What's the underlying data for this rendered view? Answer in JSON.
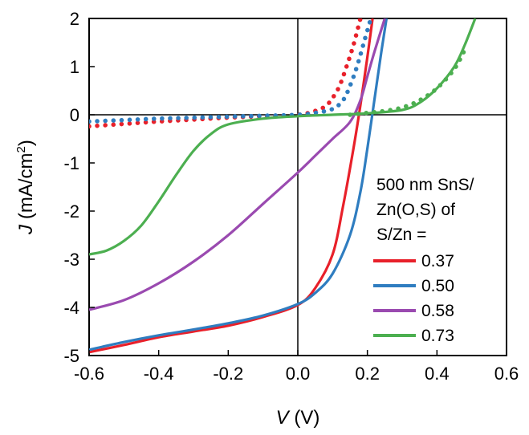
{
  "chart_data": {
    "type": "line",
    "xlabel_italic": "V",
    "xlabel_unit": " (V)",
    "ylabel_italic": "J",
    "ylabel_unit_pre": " (mA/cm",
    "ylabel_unit_sup": "2",
    "ylabel_unit_post": ")",
    "xlim": [
      -0.6,
      0.6
    ],
    "ylim": [
      -5,
      2
    ],
    "xticks": [
      "-0.6",
      "-0.4",
      "-0.2",
      "0.0",
      "0.2",
      "0.4",
      "0.6"
    ],
    "yticks": [
      "-5",
      "-4",
      "-3",
      "-2",
      "-1",
      "0",
      "1",
      "2"
    ],
    "legend_title": [
      "500 nm SnS/",
      "Zn(O,S) of",
      "S/Zn ="
    ],
    "legend_position": "bottom-right",
    "series": [
      {
        "name": "0.37",
        "color": "#e8202a",
        "illuminated": [
          [
            -0.6,
            -4.93
          ],
          [
            -0.5,
            -4.78
          ],
          [
            -0.4,
            -4.62
          ],
          [
            -0.3,
            -4.5
          ],
          [
            -0.2,
            -4.38
          ],
          [
            -0.1,
            -4.2
          ],
          [
            0.0,
            -3.95
          ],
          [
            0.05,
            -3.6
          ],
          [
            0.1,
            -2.9
          ],
          [
            0.13,
            -1.9
          ],
          [
            0.16,
            -0.7
          ],
          [
            0.18,
            0.2
          ],
          [
            0.2,
            1.2
          ],
          [
            0.215,
            2.0
          ]
        ],
        "dark": [
          [
            -0.6,
            -0.24
          ],
          [
            -0.5,
            -0.19
          ],
          [
            -0.4,
            -0.14
          ],
          [
            -0.3,
            -0.1
          ],
          [
            -0.2,
            -0.06
          ],
          [
            -0.1,
            -0.03
          ],
          [
            0.0,
            0.0
          ],
          [
            0.05,
            0.08
          ],
          [
            0.08,
            0.18
          ],
          [
            0.1,
            0.35
          ],
          [
            0.12,
            0.6
          ],
          [
            0.14,
            1.0
          ],
          [
            0.16,
            1.45
          ],
          [
            0.18,
            2.0
          ]
        ]
      },
      {
        "name": "0.50",
        "color": "#2f7dc0",
        "illuminated": [
          [
            -0.6,
            -4.88
          ],
          [
            -0.5,
            -4.72
          ],
          [
            -0.4,
            -4.58
          ],
          [
            -0.3,
            -4.46
          ],
          [
            -0.2,
            -4.33
          ],
          [
            -0.1,
            -4.17
          ],
          [
            0.0,
            -3.93
          ],
          [
            0.05,
            -3.7
          ],
          [
            0.1,
            -3.3
          ],
          [
            0.15,
            -2.5
          ],
          [
            0.18,
            -1.6
          ],
          [
            0.2,
            -0.7
          ],
          [
            0.22,
            0.3
          ],
          [
            0.24,
            1.3
          ],
          [
            0.255,
            2.0
          ]
        ],
        "dark": [
          [
            -0.6,
            -0.14
          ],
          [
            -0.5,
            -0.11
          ],
          [
            -0.4,
            -0.08
          ],
          [
            -0.3,
            -0.06
          ],
          [
            -0.2,
            -0.04
          ],
          [
            -0.1,
            -0.02
          ],
          [
            0.0,
            0.0
          ],
          [
            0.05,
            0.04
          ],
          [
            0.1,
            0.12
          ],
          [
            0.13,
            0.3
          ],
          [
            0.15,
            0.6
          ],
          [
            0.17,
            1.0
          ],
          [
            0.19,
            1.5
          ],
          [
            0.21,
            2.0
          ]
        ]
      },
      {
        "name": "0.58",
        "color": "#9a4ab0",
        "illuminated": [
          [
            -0.6,
            -4.05
          ],
          [
            -0.5,
            -3.85
          ],
          [
            -0.4,
            -3.5
          ],
          [
            -0.3,
            -3.05
          ],
          [
            -0.2,
            -2.5
          ],
          [
            -0.1,
            -1.85
          ],
          [
            0.0,
            -1.2
          ],
          [
            0.05,
            -0.85
          ],
          [
            0.1,
            -0.5
          ],
          [
            0.15,
            -0.15
          ],
          [
            0.18,
            0.3
          ],
          [
            0.2,
            0.8
          ],
          [
            0.22,
            1.3
          ],
          [
            0.25,
            2.0
          ]
        ],
        "dark": []
      },
      {
        "name": "0.73",
        "color": "#4caf50",
        "illuminated": [
          [
            -0.6,
            -2.9
          ],
          [
            -0.55,
            -2.82
          ],
          [
            -0.5,
            -2.62
          ],
          [
            -0.45,
            -2.3
          ],
          [
            -0.4,
            -1.8
          ],
          [
            -0.35,
            -1.25
          ],
          [
            -0.3,
            -0.75
          ],
          [
            -0.25,
            -0.4
          ],
          [
            -0.2,
            -0.2
          ],
          [
            -0.1,
            -0.08
          ],
          [
            0.0,
            -0.03
          ],
          [
            0.1,
            0.0
          ],
          [
            0.2,
            0.03
          ],
          [
            0.3,
            0.1
          ],
          [
            0.35,
            0.25
          ],
          [
            0.4,
            0.55
          ],
          [
            0.45,
            1.0
          ],
          [
            0.48,
            1.45
          ],
          [
            0.51,
            2.0
          ]
        ],
        "dark": [
          [
            0.15,
            0.0
          ],
          [
            0.2,
            0.04
          ],
          [
            0.25,
            0.08
          ],
          [
            0.3,
            0.15
          ],
          [
            0.35,
            0.3
          ],
          [
            0.4,
            0.55
          ],
          [
            0.45,
            0.95
          ],
          [
            0.48,
            1.35
          ]
        ]
      }
    ]
  }
}
